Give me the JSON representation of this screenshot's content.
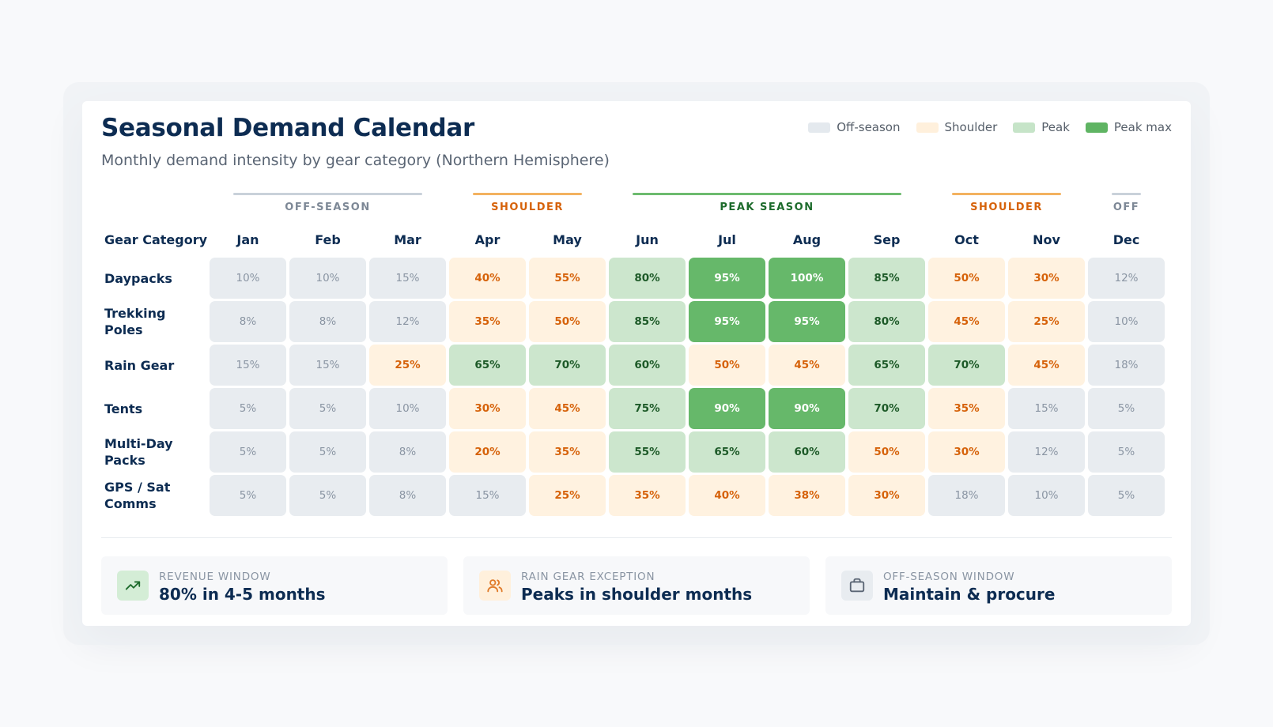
{
  "header": {
    "title": "Seasonal Demand Calendar",
    "subtitle": "Monthly demand intensity by gear category (Northern Hemisphere)"
  },
  "legend": [
    {
      "label": "Off-season",
      "color": "#e4e9ee"
    },
    {
      "label": "Shoulder",
      "color": "#fff0dc"
    },
    {
      "label": "Peak",
      "color": "#c6e4c8"
    },
    {
      "label": "Peak max",
      "color": "#5fb463"
    }
  ],
  "seasons": [
    {
      "label": "OFF-SEASON",
      "start": 0,
      "end": 2,
      "line_color": "#c9d1da",
      "text_color": "#7d8896"
    },
    {
      "label": "SHOULDER",
      "start": 3,
      "end": 4,
      "line_color": "#f3b260",
      "text_color": "#d6620a"
    },
    {
      "label": "PEAK SEASON",
      "start": 5,
      "end": 8,
      "line_color": "#6dbb6f",
      "text_color": "#1d6b2c"
    },
    {
      "label": "SHOULDER",
      "start": 9,
      "end": 10,
      "line_color": "#f3b260",
      "text_color": "#d6620a"
    },
    {
      "label": "OFF",
      "start": 11,
      "end": 11,
      "line_color": "#c9d1da",
      "text_color": "#7d8896"
    }
  ],
  "chart_data": {
    "type": "heatmap",
    "title": "Seasonal Demand Calendar",
    "subtitle": "Monthly demand intensity by gear category (Northern Hemisphere)",
    "row_header": "Gear Category",
    "columns": [
      "Jan",
      "Feb",
      "Mar",
      "Apr",
      "May",
      "Jun",
      "Jul",
      "Aug",
      "Sep",
      "Oct",
      "Nov",
      "Dec"
    ],
    "rows": [
      {
        "name": "Daypacks",
        "values": [
          10,
          10,
          15,
          40,
          55,
          80,
          95,
          100,
          85,
          50,
          30,
          12
        ],
        "levels": [
          "off",
          "off",
          "off",
          "shoulder",
          "shoulder",
          "peak",
          "max",
          "max",
          "peak",
          "shoulder",
          "shoulder",
          "off"
        ]
      },
      {
        "name": "Trekking Poles",
        "values": [
          8,
          8,
          12,
          35,
          50,
          85,
          95,
          95,
          80,
          45,
          25,
          10
        ],
        "levels": [
          "off",
          "off",
          "off",
          "shoulder",
          "shoulder",
          "peak",
          "max",
          "max",
          "peak",
          "shoulder",
          "shoulder",
          "off"
        ]
      },
      {
        "name": "Rain Gear",
        "values": [
          15,
          15,
          25,
          65,
          70,
          60,
          50,
          45,
          65,
          70,
          45,
          18
        ],
        "levels": [
          "off",
          "off",
          "shoulder",
          "peak",
          "peak",
          "peak",
          "shoulder",
          "shoulder",
          "peak",
          "peak",
          "shoulder",
          "off"
        ]
      },
      {
        "name": "Tents",
        "values": [
          5,
          5,
          10,
          30,
          45,
          75,
          90,
          90,
          70,
          35,
          15,
          5
        ],
        "levels": [
          "off",
          "off",
          "off",
          "shoulder",
          "shoulder",
          "peak",
          "max",
          "max",
          "peak",
          "shoulder",
          "off",
          "off"
        ]
      },
      {
        "name": "Multi-Day Packs",
        "values": [
          5,
          5,
          8,
          20,
          35,
          55,
          65,
          60,
          50,
          30,
          12,
          5
        ],
        "levels": [
          "off",
          "off",
          "off",
          "shoulder",
          "shoulder",
          "peak",
          "peak",
          "peak",
          "shoulder",
          "shoulder",
          "off",
          "off"
        ]
      },
      {
        "name": "GPS / Sat Comms",
        "values": [
          5,
          5,
          8,
          15,
          25,
          35,
          40,
          38,
          30,
          18,
          10,
          5
        ],
        "levels": [
          "off",
          "off",
          "off",
          "off",
          "shoulder",
          "shoulder",
          "shoulder",
          "shoulder",
          "shoulder",
          "off",
          "off",
          "off"
        ]
      }
    ],
    "unit": "%",
    "legend_position": "top-right"
  },
  "stats": [
    {
      "label": "REVENUE WINDOW",
      "value": "80% in 4-5 months",
      "icon": "trending-up-icon",
      "icon_bg": "#d4edd6",
      "icon_color": "#1d6b2c"
    },
    {
      "label": "RAIN GEAR EXCEPTION",
      "value": "Peaks in shoulder months",
      "icon": "users-icon",
      "icon_bg": "#fff0dc",
      "icon_color": "#e07b2a"
    },
    {
      "label": "OFF-SEASON WINDOW",
      "value": "Maintain & procure",
      "icon": "briefcase-icon",
      "icon_bg": "#e8ecf0",
      "icon_color": "#5a6574"
    }
  ]
}
